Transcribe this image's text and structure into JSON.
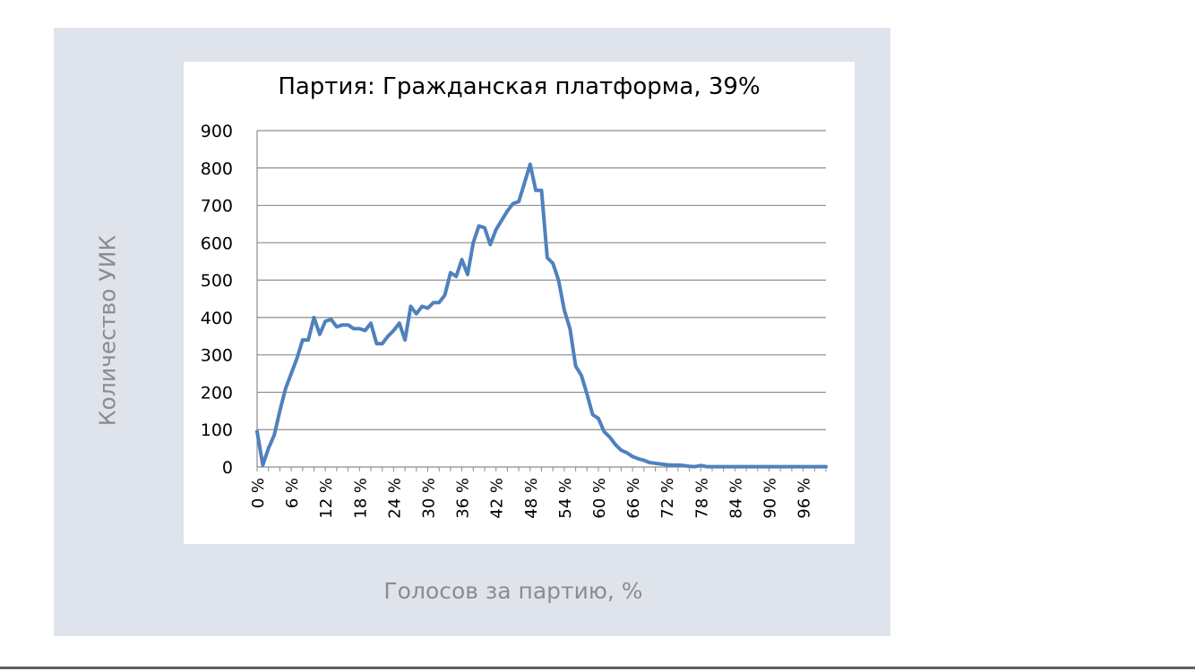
{
  "chart_data": {
    "type": "line",
    "title": "Партия: Гражданская платформа, 39%",
    "xlabel": "Голосов за партию, %",
    "ylabel": "Количество УИК",
    "ylim": [
      0,
      900
    ],
    "yticks": [
      "0",
      "100",
      "200",
      "300",
      "400",
      "500",
      "600",
      "700",
      "800",
      "900"
    ],
    "xticks": [
      "0 %",
      "6 %",
      "12 %",
      "18 %",
      "24 %",
      "30 %",
      "36 %",
      "42 %",
      "48 %",
      "54 %",
      "60 %",
      "66 %",
      "72 %",
      "78 %",
      "84 %",
      "90 %",
      "96 %"
    ],
    "grid": true,
    "line_color": "#4f81bd",
    "series": [
      {
        "x": [
          0,
          1,
          2,
          3,
          4,
          5,
          6,
          7,
          8,
          9,
          10,
          11,
          12,
          13,
          14,
          15,
          16,
          17,
          18,
          19,
          20,
          21,
          22,
          23,
          24,
          25,
          26,
          27,
          28,
          29,
          30,
          31,
          32,
          33,
          34,
          35,
          36,
          37,
          38,
          39,
          40,
          41,
          42,
          43,
          44,
          45,
          46,
          47,
          48,
          49,
          50,
          51,
          52,
          53,
          54,
          55,
          56,
          57,
          58,
          59,
          60,
          61,
          62,
          63,
          64,
          65,
          66,
          67,
          68,
          69,
          70,
          71,
          72,
          73,
          74,
          75,
          76,
          77,
          78,
          79,
          80,
          81,
          82,
          83,
          84,
          85,
          86,
          87,
          88,
          89,
          90,
          91,
          92,
          93,
          94,
          95,
          96,
          97,
          98,
          99,
          100
        ],
        "values": [
          95,
          5,
          50,
          85,
          150,
          210,
          250,
          290,
          340,
          340,
          400,
          355,
          390,
          395,
          375,
          380,
          380,
          370,
          370,
          365,
          385,
          330,
          330,
          350,
          365,
          385,
          340,
          430,
          410,
          430,
          425,
          440,
          440,
          460,
          520,
          510,
          555,
          515,
          600,
          645,
          640,
          595,
          635,
          660,
          685,
          705,
          710,
          760,
          810,
          740,
          740,
          560,
          545,
          500,
          420,
          370,
          270,
          245,
          195,
          140,
          130,
          95,
          80,
          60,
          45,
          38,
          28,
          22,
          18,
          12,
          10,
          8,
          6,
          5,
          5,
          4,
          2,
          1,
          4,
          1,
          1,
          1,
          1,
          1,
          1,
          1,
          1,
          1,
          1,
          1,
          1,
          1,
          1,
          1,
          1,
          1,
          1,
          1,
          1,
          1,
          1
        ]
      }
    ]
  }
}
